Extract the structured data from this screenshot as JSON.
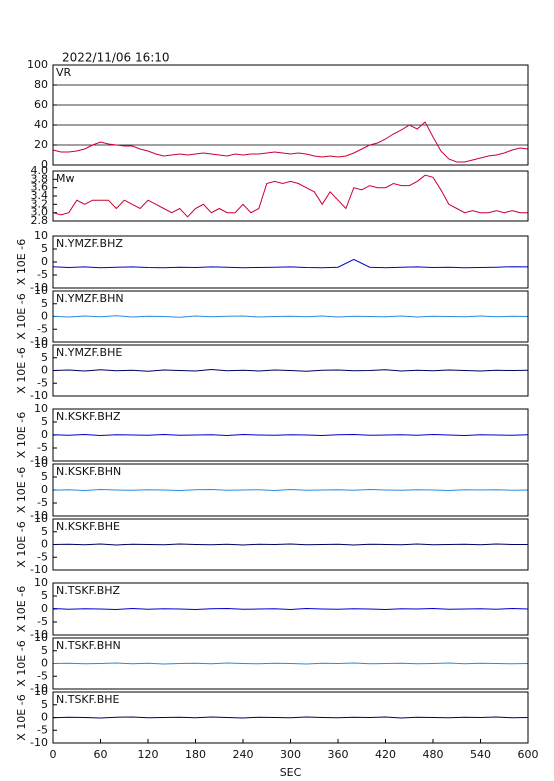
{
  "chart_data": [
    {
      "type": "line",
      "title": "2022/11/06 16:10",
      "label": "VR",
      "color": "#cc0033",
      "grid": true,
      "xlim": [
        0,
        600
      ],
      "ylim": [
        0,
        100
      ],
      "yticks": [
        0,
        20,
        40,
        60,
        80,
        100
      ],
      "x": [
        0,
        10,
        20,
        30,
        40,
        50,
        60,
        70,
        80,
        90,
        100,
        110,
        120,
        130,
        140,
        150,
        160,
        170,
        180,
        190,
        200,
        210,
        220,
        230,
        240,
        250,
        260,
        270,
        280,
        290,
        300,
        310,
        320,
        330,
        340,
        350,
        360,
        370,
        380,
        390,
        400,
        410,
        420,
        430,
        440,
        450,
        460,
        470,
        480,
        490,
        500,
        510,
        520,
        530,
        540,
        550,
        560,
        570,
        580,
        590,
        600
      ],
      "values": [
        15,
        13,
        13,
        14,
        16,
        20,
        23,
        21,
        20,
        19,
        19,
        16,
        14,
        11,
        9,
        10,
        11,
        10,
        11,
        12,
        11,
        10,
        9,
        11,
        10,
        11,
        11,
        12,
        13,
        12,
        11,
        12,
        11,
        9,
        8,
        9,
        8,
        9,
        12,
        16,
        20,
        22,
        26,
        31,
        35,
        40,
        36,
        43,
        28,
        14,
        6,
        3,
        3,
        5,
        7,
        9,
        10,
        12,
        15,
        17,
        16
      ]
    },
    {
      "type": "line",
      "label": "Mw",
      "color": "#cc0033",
      "grid": false,
      "xlim": [
        0,
        600
      ],
      "ylim": [
        2.8,
        4.0
      ],
      "yticks": [
        {
          "value": 2.8,
          "label": "2.8"
        },
        {
          "value": 3,
          "label": "3.0"
        },
        {
          "value": 3.2,
          "label": "3.2"
        },
        {
          "value": 3.4,
          "label": "3.4"
        },
        {
          "value": 3.6,
          "label": "3.6"
        },
        {
          "value": 3.8,
          "label": "3.8"
        },
        {
          "value": 4,
          "label": "4.0"
        }
      ],
      "x": [
        0,
        10,
        20,
        30,
        40,
        50,
        60,
        70,
        80,
        90,
        100,
        110,
        120,
        130,
        140,
        150,
        160,
        170,
        180,
        190,
        200,
        210,
        220,
        230,
        240,
        250,
        260,
        270,
        280,
        290,
        300,
        310,
        320,
        330,
        340,
        350,
        360,
        370,
        380,
        390,
        400,
        410,
        420,
        430,
        440,
        450,
        460,
        470,
        480,
        490,
        500,
        510,
        520,
        530,
        540,
        550,
        560,
        570,
        580,
        590,
        600
      ],
      "values": [
        3.0,
        2.95,
        3.0,
        3.3,
        3.2,
        3.3,
        3.3,
        3.3,
        3.1,
        3.3,
        3.2,
        3.1,
        3.3,
        3.2,
        3.1,
        3.0,
        3.1,
        2.9,
        3.1,
        3.2,
        3.0,
        3.1,
        3.0,
        3.0,
        3.2,
        3.0,
        3.1,
        3.7,
        3.75,
        3.7,
        3.75,
        3.7,
        3.6,
        3.5,
        3.2,
        3.5,
        3.3,
        3.1,
        3.6,
        3.55,
        3.65,
        3.6,
        3.6,
        3.7,
        3.65,
        3.65,
        3.75,
        3.9,
        3.85,
        3.55,
        3.2,
        3.1,
        3.0,
        3.05,
        3.0,
        3.0,
        3.05,
        3.0,
        3.05,
        3.0,
        3.0
      ]
    },
    {
      "type": "line",
      "label": "N.YMZF.BHZ",
      "ylabel": "X 10E -6",
      "color": "#0000cc",
      "xlim": [
        0,
        600
      ],
      "ylim": [
        -10,
        10
      ],
      "yticks": [
        -10,
        -5,
        0,
        5,
        10
      ],
      "x": [
        0,
        20,
        40,
        60,
        80,
        100,
        120,
        140,
        160,
        180,
        200,
        220,
        240,
        260,
        280,
        300,
        320,
        340,
        360,
        380,
        400,
        420,
        440,
        460,
        480,
        500,
        520,
        540,
        560,
        580,
        600
      ],
      "values": [
        -1.8,
        -2.1,
        -1.9,
        -2.2,
        -2,
        -1.9,
        -2.1,
        -2.2,
        -2,
        -2.1,
        -1.9,
        -2,
        -2.2,
        -2.1,
        -2,
        -1.9,
        -2.1,
        -2.2,
        -2,
        1,
        -2,
        -2.2,
        -2,
        -1.9,
        -2.1,
        -2,
        -2.2,
        -2.1,
        -2,
        -1.8,
        -1.9
      ]
    },
    {
      "type": "line",
      "label": "N.YMZF.BHN",
      "ylabel": "X 10E -6",
      "color": "#2a8ae0",
      "xlim": [
        0,
        600
      ],
      "ylim": [
        -10,
        10
      ],
      "yticks": [
        -10,
        -5,
        0,
        5,
        10
      ],
      "x": [
        0,
        20,
        40,
        60,
        80,
        100,
        120,
        140,
        160,
        180,
        200,
        220,
        240,
        260,
        280,
        300,
        320,
        340,
        360,
        380,
        400,
        420,
        440,
        460,
        480,
        500,
        520,
        540,
        560,
        580,
        600
      ],
      "values": [
        0.1,
        -0.2,
        0.2,
        -0.1,
        0.3,
        -0.2,
        0.1,
        0,
        -0.3,
        0.2,
        -0.1,
        0.1,
        0.2,
        -0.2,
        0,
        0.1,
        -0.1,
        0.2,
        -0.2,
        0.1,
        0,
        -0.1,
        0.2,
        -0.2,
        0.1,
        0,
        -0.1,
        0.2,
        -0.1,
        0.1,
        0
      ]
    },
    {
      "type": "line",
      "label": "N.YMZF.BHE",
      "ylabel": "X 10E -6",
      "color": "#000060",
      "xlim": [
        0,
        600
      ],
      "ylim": [
        -10,
        10
      ],
      "yticks": [
        -10,
        -5,
        0,
        5,
        10
      ],
      "x": [
        0,
        20,
        40,
        60,
        80,
        100,
        120,
        140,
        160,
        180,
        200,
        220,
        240,
        260,
        280,
        300,
        320,
        340,
        360,
        380,
        400,
        420,
        440,
        460,
        480,
        500,
        520,
        540,
        560,
        580,
        600
      ],
      "values": [
        0,
        0.2,
        -0.2,
        0.3,
        -0.1,
        0.1,
        -0.3,
        0.2,
        0,
        -0.2,
        0.4,
        -0.1,
        0.1,
        -0.2,
        0.2,
        0,
        -0.3,
        0.1,
        0.2,
        -0.1,
        0,
        0.3,
        -0.2,
        0.1,
        -0.1,
        0.2,
        0,
        -0.2,
        0.1,
        0,
        0.1
      ]
    },
    {
      "type": "line",
      "label": "N.KSKF.BHZ",
      "ylabel": "X 10E -6",
      "color": "#0000cc",
      "xlim": [
        0,
        600
      ],
      "ylim": [
        -10,
        10
      ],
      "yticks": [
        -10,
        -5,
        0,
        5,
        10
      ],
      "x": [
        0,
        20,
        40,
        60,
        80,
        100,
        120,
        140,
        160,
        180,
        200,
        220,
        240,
        260,
        280,
        300,
        320,
        340,
        360,
        380,
        400,
        420,
        440,
        460,
        480,
        500,
        520,
        540,
        560,
        580,
        600
      ],
      "values": [
        0.1,
        -0.1,
        0.2,
        -0.2,
        0.1,
        0,
        -0.1,
        0.2,
        -0.1,
        0,
        0.1,
        -0.2,
        0.2,
        0,
        -0.1,
        0.1,
        0,
        -0.2,
        0.1,
        0.2,
        -0.1,
        0,
        0.1,
        -0.1,
        0.2,
        0,
        -0.2,
        0.1,
        0,
        -0.1,
        0.1
      ]
    },
    {
      "type": "line",
      "label": "N.KSKF.BHN",
      "ylabel": "X 10E -6",
      "color": "#2a8ae0",
      "xlim": [
        0,
        600
      ],
      "ylim": [
        -10,
        10
      ],
      "yticks": [
        -10,
        -5,
        0,
        5,
        10
      ],
      "x": [
        0,
        20,
        40,
        60,
        80,
        100,
        120,
        140,
        160,
        180,
        200,
        220,
        240,
        260,
        280,
        300,
        320,
        340,
        360,
        380,
        400,
        420,
        440,
        460,
        480,
        500,
        520,
        540,
        560,
        580,
        600
      ],
      "values": [
        -0.1,
        0.1,
        -0.2,
        0.2,
        0,
        -0.1,
        0.1,
        0,
        -0.2,
        0.1,
        0.2,
        -0.1,
        0,
        0.1,
        -0.2,
        0.2,
        -0.1,
        0,
        0.1,
        -0.1,
        0.2,
        0,
        -0.1,
        0.1,
        0,
        -0.2,
        0.1,
        0,
        0.1,
        -0.1,
        0
      ]
    },
    {
      "type": "line",
      "label": "N.KSKF.BHE",
      "ylabel": "X 10E -6",
      "color": "#000060",
      "xlim": [
        0,
        600
      ],
      "ylim": [
        -10,
        10
      ],
      "yticks": [
        -10,
        -5,
        0,
        5,
        10
      ],
      "x": [
        0,
        20,
        40,
        60,
        80,
        100,
        120,
        140,
        160,
        180,
        200,
        220,
        240,
        260,
        280,
        300,
        320,
        340,
        360,
        380,
        400,
        420,
        440,
        460,
        480,
        500,
        520,
        540,
        560,
        580,
        600
      ],
      "values": [
        0,
        0.1,
        -0.1,
        0.2,
        -0.2,
        0.1,
        0,
        -0.1,
        0.2,
        0,
        -0.1,
        0.1,
        -0.2,
        0.1,
        0,
        0.2,
        -0.1,
        0,
        0.1,
        -0.2,
        0.1,
        0,
        -0.1,
        0.2,
        -0.1,
        0,
        0.1,
        -0.1,
        0.2,
        0,
        0
      ]
    },
    {
      "type": "line",
      "label": "N.TSKF.BHZ",
      "ylabel": "X 10E -6",
      "color": "#0000cc",
      "xlim": [
        0,
        600
      ],
      "ylim": [
        -10,
        10
      ],
      "yticks": [
        -10,
        -5,
        0,
        5,
        10
      ],
      "x": [
        0,
        20,
        40,
        60,
        80,
        100,
        120,
        140,
        160,
        180,
        200,
        220,
        240,
        260,
        280,
        300,
        320,
        340,
        360,
        380,
        400,
        420,
        440,
        460,
        480,
        500,
        520,
        540,
        560,
        580,
        600
      ],
      "values": [
        0.2,
        -0.1,
        0.1,
        0,
        -0.2,
        0.2,
        -0.1,
        0.1,
        0,
        -0.2,
        0.1,
        0.2,
        -0.1,
        0,
        0.1,
        -0.2,
        0.2,
        0,
        -0.1,
        0.1,
        0,
        -0.2,
        0.1,
        0,
        0.2,
        -0.1,
        0,
        0.1,
        -0.1,
        0.2,
        0
      ]
    },
    {
      "type": "line",
      "label": "N.TSKF.BHN",
      "ylabel": "X 10E -6",
      "color": "#2a8ae0",
      "xlim": [
        0,
        600
      ],
      "ylim": [
        -10,
        10
      ],
      "yticks": [
        -10,
        -5,
        0,
        5,
        10
      ],
      "x": [
        0,
        20,
        40,
        60,
        80,
        100,
        120,
        140,
        160,
        180,
        200,
        220,
        240,
        260,
        280,
        300,
        320,
        340,
        360,
        380,
        400,
        420,
        440,
        460,
        480,
        500,
        520,
        540,
        560,
        580,
        600
      ],
      "values": [
        0,
        0.1,
        -0.1,
        0,
        0.2,
        -0.1,
        0.1,
        -0.2,
        0,
        0.1,
        -0.1,
        0.2,
        0,
        -0.1,
        0.1,
        0,
        -0.2,
        0.1,
        0,
        0.2,
        -0.1,
        0,
        0.1,
        -0.1,
        0,
        0.2,
        -0.1,
        0.1,
        0,
        -0.1,
        0
      ]
    },
    {
      "type": "line",
      "label": "N.TSKF.BHE",
      "ylabel": "X 10E -6",
      "color": "#000060",
      "xlim": [
        0,
        600
      ],
      "ylim": [
        -10,
        10
      ],
      "yticks": [
        -10,
        -5,
        0,
        5,
        10
      ],
      "xticks": [
        0,
        60,
        120,
        180,
        240,
        300,
        360,
        420,
        480,
        540,
        600
      ],
      "xlabel": "SEC",
      "x": [
        0,
        20,
        40,
        60,
        80,
        100,
        120,
        140,
        160,
        180,
        200,
        220,
        240,
        260,
        280,
        300,
        320,
        340,
        360,
        380,
        400,
        420,
        440,
        460,
        480,
        500,
        520,
        540,
        560,
        580,
        600
      ],
      "values": [
        -0.1,
        0.1,
        0,
        -0.2,
        0.1,
        0.2,
        -0.1,
        0,
        0.1,
        -0.1,
        0.2,
        0,
        -0.2,
        0.1,
        0,
        -0.1,
        0.2,
        0,
        -0.1,
        0.1,
        0,
        0.2,
        -0.2,
        0.1,
        0,
        -0.1,
        0.1,
        0,
        0.2,
        -0.1,
        0
      ]
    }
  ]
}
